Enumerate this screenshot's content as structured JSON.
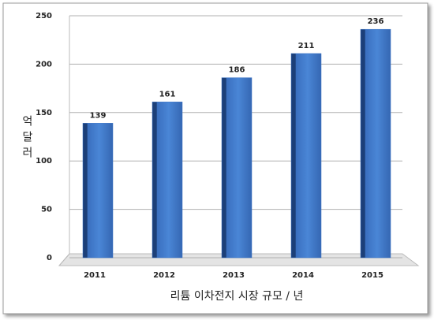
{
  "chart_data": {
    "type": "bar",
    "y_label": "억달러",
    "x_label": "리튬 이차전지 시장 규모 / 년",
    "categories": [
      "2011",
      "2012",
      "2013",
      "2014",
      "2015"
    ],
    "values": [
      139,
      161,
      186,
      211,
      236
    ],
    "color": "#3f77c6",
    "ylim": [
      0,
      250
    ],
    "yticks": [
      0,
      50,
      100,
      150,
      200,
      250
    ],
    "grid": true
  }
}
